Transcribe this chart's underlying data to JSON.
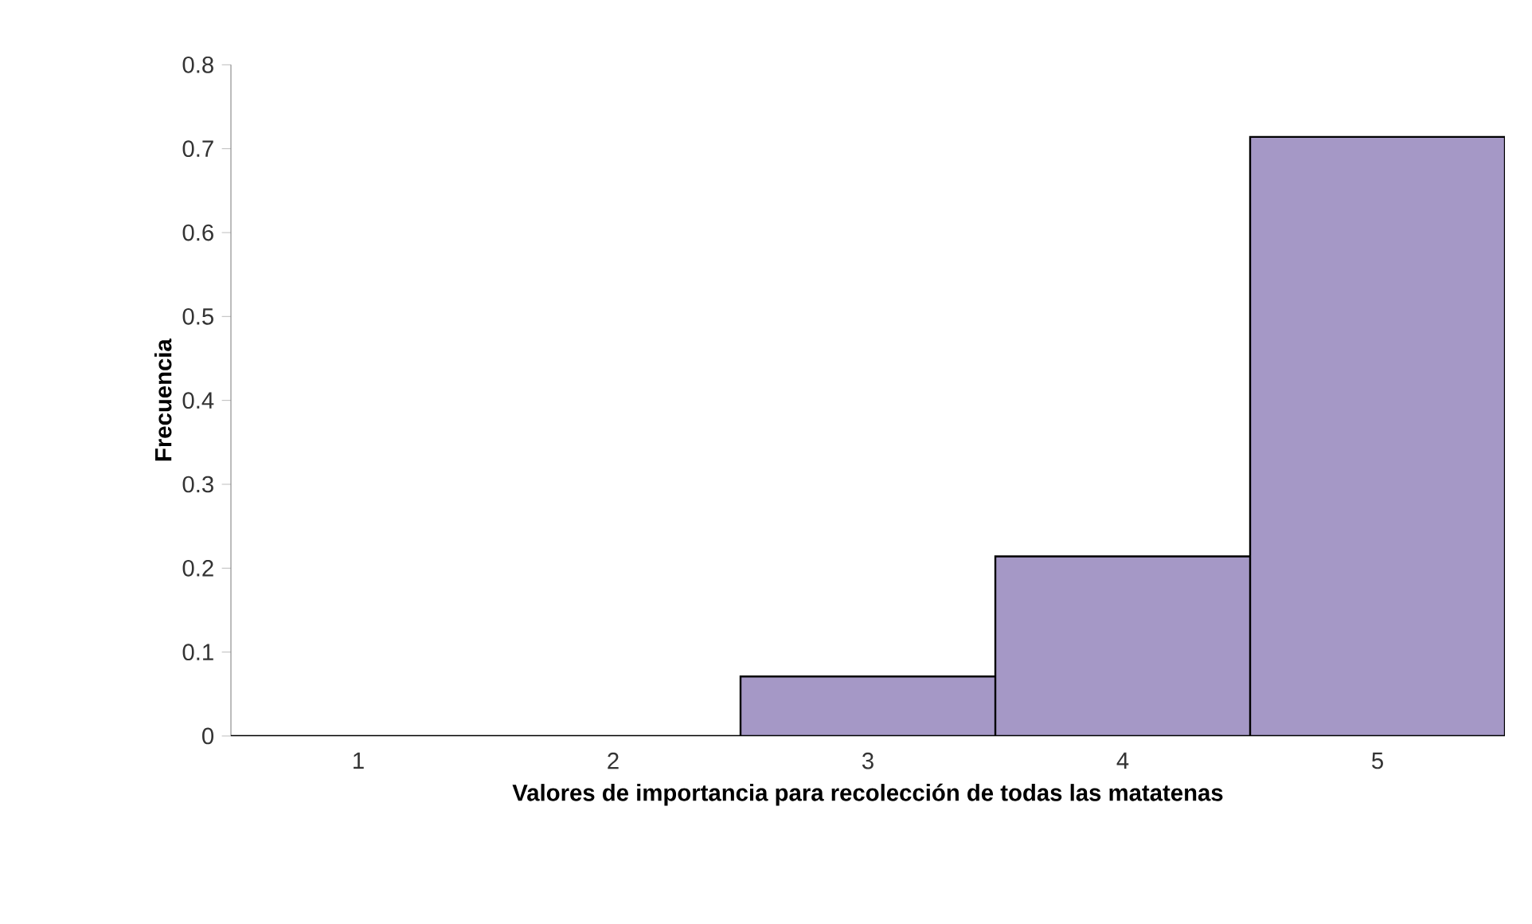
{
  "chart_data": {
    "type": "bar",
    "xlabel": "Valores de importancia para recolección de todas las matatenas",
    "ylabel": "Frecuencia",
    "categories": [
      "1",
      "2",
      "3",
      "4",
      "5"
    ],
    "values": [
      0,
      0,
      0.071,
      0.214,
      0.714
    ],
    "color": "#a598c6",
    "ylim": [
      0,
      0.8
    ],
    "yticks": [
      0,
      0.1,
      0.2,
      0.3,
      0.4,
      0.5,
      0.6,
      0.7,
      0.8
    ]
  }
}
